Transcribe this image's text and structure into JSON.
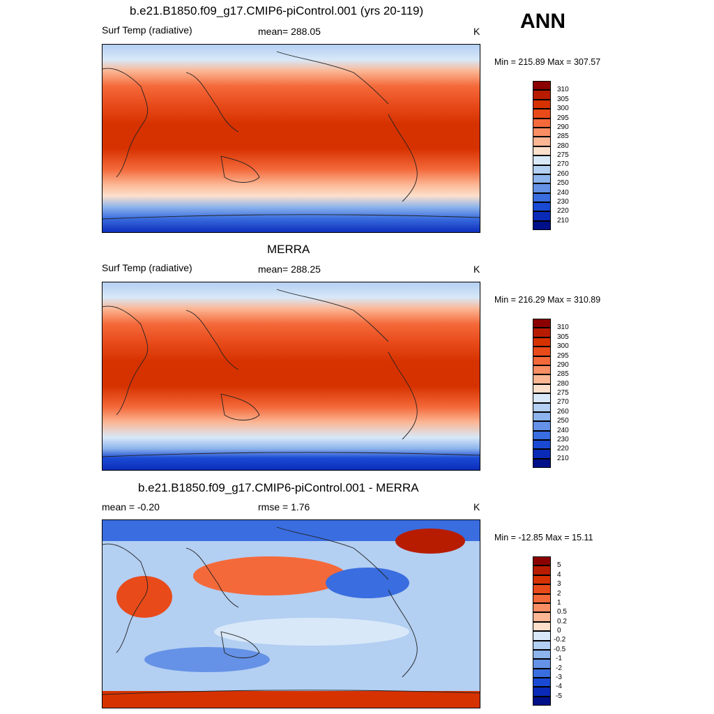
{
  "season": "ANN",
  "panels": [
    {
      "title": "b.e21.B1850.f09_g17.CMIP6-piControl.001 (yrs 20-119)",
      "left_label": "Surf Temp (radiative)",
      "center_label": "mean= 288.05",
      "units": "K",
      "minmax": "Min = 215.89 Max = 307.57",
      "colorbar_ticks": [
        "310",
        "305",
        "300",
        "295",
        "290",
        "285",
        "280",
        "275",
        "270",
        "260",
        "250",
        "240",
        "230",
        "220",
        "210"
      ],
      "colorbar_colors": [
        "#8b0000",
        "#b71c00",
        "#d63200",
        "#e84a1a",
        "#f4693a",
        "#f98d63",
        "#fbb694",
        "#fde0cc",
        "#d8e8f8",
        "#b3cff2",
        "#8db4ec",
        "#6592e6",
        "#3a6ddf",
        "#1a4ad4",
        "#0a2ab8",
        "#001088"
      ]
    },
    {
      "title": "MERRA",
      "left_label": "Surf Temp (radiative)",
      "center_label": "mean= 288.25",
      "units": "K",
      "minmax": "Min = 216.29 Max = 310.89",
      "colorbar_ticks": [
        "310",
        "305",
        "300",
        "295",
        "290",
        "285",
        "280",
        "275",
        "270",
        "260",
        "250",
        "240",
        "230",
        "220",
        "210"
      ],
      "colorbar_colors": [
        "#8b0000",
        "#b71c00",
        "#d63200",
        "#e84a1a",
        "#f4693a",
        "#f98d63",
        "#fbb694",
        "#fde0cc",
        "#d8e8f8",
        "#b3cff2",
        "#8db4ec",
        "#6592e6",
        "#3a6ddf",
        "#1a4ad4",
        "#0a2ab8",
        "#001088"
      ]
    },
    {
      "title": "b.e21.B1850.f09_g17.CMIP6-piControl.001 - MERRA",
      "left_label": "mean =  -0.20",
      "center_label": "rmse =   1.76",
      "units": "K",
      "minmax": "Min = -12.85 Max =  15.11",
      "colorbar_ticks": [
        "5",
        "4",
        "3",
        "2",
        "1",
        "0.5",
        "0.2",
        "0",
        "-0.2",
        "-0.5",
        "-1",
        "-2",
        "-3",
        "-4",
        "-5"
      ],
      "colorbar_colors": [
        "#8b0000",
        "#b71c00",
        "#d63200",
        "#e84a1a",
        "#f4693a",
        "#f98d63",
        "#fbb694",
        "#fde0cc",
        "#d8e8f8",
        "#b3cff2",
        "#8db4ec",
        "#6592e6",
        "#3a6ddf",
        "#1a4ad4",
        "#0a2ab8",
        "#001088"
      ]
    }
  ]
}
